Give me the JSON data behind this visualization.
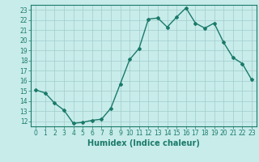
{
  "x": [
    0,
    1,
    2,
    3,
    4,
    5,
    6,
    7,
    8,
    9,
    10,
    11,
    12,
    13,
    14,
    15,
    16,
    17,
    18,
    19,
    20,
    21,
    22,
    23
  ],
  "y": [
    15.1,
    14.8,
    13.8,
    13.1,
    11.8,
    11.9,
    12.1,
    12.2,
    13.3,
    15.7,
    18.1,
    19.2,
    22.1,
    22.2,
    21.3,
    22.3,
    23.2,
    21.7,
    21.2,
    21.7,
    19.8,
    18.3,
    17.7,
    16.1
  ],
  "line_color": "#1a7a6a",
  "marker": "D",
  "marker_size": 2,
  "bg_color": "#c8ecea",
  "grid_color": "#a0cccc",
  "xlabel": "Humidex (Indice chaleur)",
  "ylim": [
    11.5,
    23.5
  ],
  "xlim": [
    -0.5,
    23.5
  ],
  "yticks": [
    12,
    13,
    14,
    15,
    16,
    17,
    18,
    19,
    20,
    21,
    22,
    23
  ],
  "xticks": [
    0,
    1,
    2,
    3,
    4,
    5,
    6,
    7,
    8,
    9,
    10,
    11,
    12,
    13,
    14,
    15,
    16,
    17,
    18,
    19,
    20,
    21,
    22,
    23
  ],
  "xlabel_fontsize": 7,
  "tick_fontsize": 5.5,
  "line_width": 1.0
}
